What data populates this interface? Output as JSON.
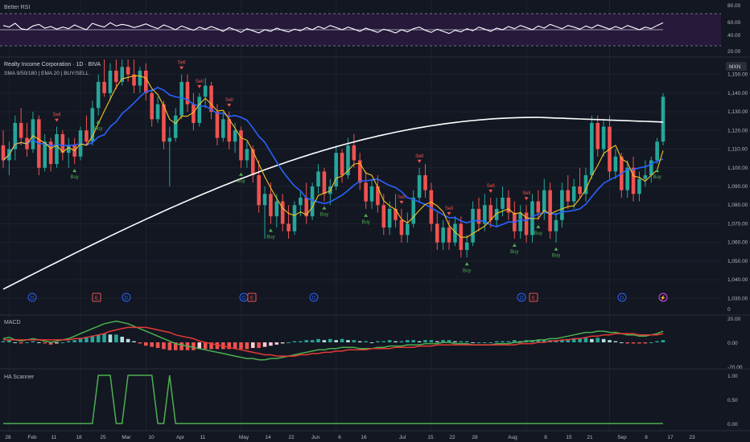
{
  "panes": {
    "rsi": {
      "label": "Better RSI",
      "axis_ticks": [
        "80.00",
        "60.00",
        "40.00",
        "20.00"
      ]
    },
    "price": {
      "title": "Realty Income Corporation · 1D · BIVA",
      "subtitle": "SMA 9/50/180 | EMA 20 | BUY/SELL",
      "currency": "MXN",
      "axis_ticks": [
        "1,150.00",
        "1,140.00",
        "1,130.00",
        "1,120.00",
        "1,110.00",
        "1,100.00",
        "1,090.00",
        "1,080.00",
        "1,070.00",
        "1,060.00",
        "1,050.00",
        "1,040.00",
        "1,030.00"
      ],
      "extra_tick": "0"
    },
    "macd": {
      "label": "MACD",
      "axis_ticks": [
        "20.00",
        "0.00",
        "-20.00"
      ]
    },
    "ha": {
      "label": "HA Scanner",
      "axis_ticks": [
        "1.00",
        "0.50",
        "0.00"
      ]
    }
  },
  "x_axis_labels": [
    "28",
    "Feb",
    "11",
    "18",
    "25",
    "Mar",
    "10",
    "Apr",
    "11",
    "May",
    "14",
    "22",
    "Jun",
    "6",
    "16",
    "Jul",
    "15",
    "22",
    "28",
    "Aug",
    "8",
    "15",
    "21",
    "Sep",
    "8",
    "17",
    "23"
  ],
  "event_markers": [
    "D",
    "E",
    "D",
    "D",
    "E",
    "D",
    "D",
    "E",
    "D",
    "⚡"
  ],
  "signal_labels": {
    "buy": "Buy",
    "sell": "Sell"
  },
  "colors": {
    "background": "#131722",
    "up": "#26a69a",
    "down": "#ef5350",
    "sma_fast": "#f7c325",
    "sma_mid": "#2962ff",
    "sma_long": "#ffffff",
    "rsi_band": "#2a1a3e",
    "macd_line": "#4caf50",
    "signal_line": "#e53935",
    "scanner": "#4caf50",
    "buy": "#4caf50",
    "sell": "#ef5350"
  },
  "chart_data": {
    "type": "candlestick",
    "price_ylim": [
      1022,
      1158
    ],
    "series": [
      {
        "name": "SMA 9",
        "color": "#f7c325"
      },
      {
        "name": "SMA 50",
        "color": "#2962ff"
      },
      {
        "name": "SMA 180",
        "color": "#ffffff"
      }
    ],
    "candles": [
      {
        "o": 1112,
        "h": 1120,
        "l": 1100,
        "c": 1104
      },
      {
        "o": 1104,
        "h": 1114,
        "l": 1096,
        "c": 1110
      },
      {
        "o": 1110,
        "h": 1128,
        "l": 1104,
        "c": 1124
      },
      {
        "o": 1124,
        "h": 1132,
        "l": 1112,
        "c": 1116
      },
      {
        "o": 1116,
        "h": 1124,
        "l": 1106,
        "c": 1110
      },
      {
        "o": 1110,
        "h": 1130,
        "l": 1108,
        "c": 1126
      },
      {
        "o": 1126,
        "h": 1128,
        "l": 1096,
        "c": 1100
      },
      {
        "o": 1100,
        "h": 1118,
        "l": 1098,
        "c": 1114
      },
      {
        "o": 1114,
        "h": 1116,
        "l": 1098,
        "c": 1102
      },
      {
        "o": 1102,
        "h": 1122,
        "l": 1100,
        "c": 1118
      },
      {
        "o": 1118,
        "h": 1120,
        "l": 1104,
        "c": 1108
      },
      {
        "o": 1108,
        "h": 1116,
        "l": 1100,
        "c": 1112
      },
      {
        "o": 1112,
        "h": 1116,
        "l": 1102,
        "c": 1106
      },
      {
        "o": 1106,
        "h": 1122,
        "l": 1104,
        "c": 1120
      },
      {
        "o": 1120,
        "h": 1128,
        "l": 1112,
        "c": 1114
      },
      {
        "o": 1114,
        "h": 1136,
        "l": 1112,
        "c": 1132
      },
      {
        "o": 1132,
        "h": 1150,
        "l": 1128,
        "c": 1146
      },
      {
        "o": 1146,
        "h": 1158,
        "l": 1138,
        "c": 1140
      },
      {
        "o": 1140,
        "h": 1156,
        "l": 1136,
        "c": 1152
      },
      {
        "o": 1152,
        "h": 1158,
        "l": 1142,
        "c": 1146
      },
      {
        "o": 1146,
        "h": 1158,
        "l": 1144,
        "c": 1154
      },
      {
        "o": 1154,
        "h": 1158,
        "l": 1146,
        "c": 1150
      },
      {
        "o": 1150,
        "h": 1158,
        "l": 1140,
        "c": 1144
      },
      {
        "o": 1144,
        "h": 1154,
        "l": 1140,
        "c": 1152
      },
      {
        "o": 1152,
        "h": 1156,
        "l": 1136,
        "c": 1140
      },
      {
        "o": 1140,
        "h": 1142,
        "l": 1122,
        "c": 1126
      },
      {
        "o": 1126,
        "h": 1138,
        "l": 1124,
        "c": 1134
      },
      {
        "o": 1134,
        "h": 1136,
        "l": 1110,
        "c": 1114
      },
      {
        "o": 1114,
        "h": 1122,
        "l": 1090,
        "c": 1116
      },
      {
        "o": 1116,
        "h": 1132,
        "l": 1114,
        "c": 1128
      },
      {
        "o": 1128,
        "h": 1150,
        "l": 1126,
        "c": 1146
      },
      {
        "o": 1146,
        "h": 1150,
        "l": 1130,
        "c": 1134
      },
      {
        "o": 1134,
        "h": 1140,
        "l": 1120,
        "c": 1124
      },
      {
        "o": 1124,
        "h": 1140,
        "l": 1122,
        "c": 1138
      },
      {
        "o": 1138,
        "h": 1148,
        "l": 1132,
        "c": 1144
      },
      {
        "o": 1144,
        "h": 1146,
        "l": 1126,
        "c": 1130
      },
      {
        "o": 1130,
        "h": 1134,
        "l": 1112,
        "c": 1116
      },
      {
        "o": 1116,
        "h": 1130,
        "l": 1114,
        "c": 1126
      },
      {
        "o": 1126,
        "h": 1130,
        "l": 1110,
        "c": 1114
      },
      {
        "o": 1114,
        "h": 1124,
        "l": 1108,
        "c": 1120
      },
      {
        "o": 1120,
        "h": 1122,
        "l": 1100,
        "c": 1104
      },
      {
        "o": 1104,
        "h": 1114,
        "l": 1100,
        "c": 1110
      },
      {
        "o": 1110,
        "h": 1112,
        "l": 1092,
        "c": 1096
      },
      {
        "o": 1096,
        "h": 1104,
        "l": 1076,
        "c": 1080
      },
      {
        "o": 1080,
        "h": 1090,
        "l": 1062,
        "c": 1086
      },
      {
        "o": 1086,
        "h": 1092,
        "l": 1070,
        "c": 1074
      },
      {
        "o": 1074,
        "h": 1086,
        "l": 1068,
        "c": 1082
      },
      {
        "o": 1082,
        "h": 1086,
        "l": 1066,
        "c": 1070
      },
      {
        "o": 1070,
        "h": 1080,
        "l": 1062,
        "c": 1066
      },
      {
        "o": 1066,
        "h": 1082,
        "l": 1064,
        "c": 1080
      },
      {
        "o": 1080,
        "h": 1088,
        "l": 1074,
        "c": 1084
      },
      {
        "o": 1084,
        "h": 1092,
        "l": 1070,
        "c": 1074
      },
      {
        "o": 1074,
        "h": 1092,
        "l": 1072,
        "c": 1090
      },
      {
        "o": 1090,
        "h": 1102,
        "l": 1086,
        "c": 1098
      },
      {
        "o": 1098,
        "h": 1100,
        "l": 1082,
        "c": 1086
      },
      {
        "o": 1086,
        "h": 1094,
        "l": 1080,
        "c": 1090
      },
      {
        "o": 1090,
        "h": 1112,
        "l": 1088,
        "c": 1108
      },
      {
        "o": 1108,
        "h": 1110,
        "l": 1092,
        "c": 1096
      },
      {
        "o": 1096,
        "h": 1116,
        "l": 1094,
        "c": 1112
      },
      {
        "o": 1112,
        "h": 1118,
        "l": 1100,
        "c": 1104
      },
      {
        "o": 1104,
        "h": 1108,
        "l": 1088,
        "c": 1092
      },
      {
        "o": 1092,
        "h": 1098,
        "l": 1078,
        "c": 1082
      },
      {
        "o": 1082,
        "h": 1094,
        "l": 1078,
        "c": 1090
      },
      {
        "o": 1090,
        "h": 1096,
        "l": 1076,
        "c": 1080
      },
      {
        "o": 1080,
        "h": 1086,
        "l": 1064,
        "c": 1068
      },
      {
        "o": 1068,
        "h": 1082,
        "l": 1064,
        "c": 1078
      },
      {
        "o": 1078,
        "h": 1086,
        "l": 1068,
        "c": 1072
      },
      {
        "o": 1072,
        "h": 1078,
        "l": 1060,
        "c": 1064
      },
      {
        "o": 1064,
        "h": 1076,
        "l": 1060,
        "c": 1070
      },
      {
        "o": 1070,
        "h": 1088,
        "l": 1068,
        "c": 1084
      },
      {
        "o": 1084,
        "h": 1100,
        "l": 1082,
        "c": 1096
      },
      {
        "o": 1096,
        "h": 1102,
        "l": 1084,
        "c": 1088
      },
      {
        "o": 1088,
        "h": 1092,
        "l": 1066,
        "c": 1070
      },
      {
        "o": 1070,
        "h": 1076,
        "l": 1056,
        "c": 1060
      },
      {
        "o": 1060,
        "h": 1072,
        "l": 1056,
        "c": 1068
      },
      {
        "o": 1068,
        "h": 1072,
        "l": 1056,
        "c": 1060
      },
      {
        "o": 1060,
        "h": 1074,
        "l": 1058,
        "c": 1070
      },
      {
        "o": 1070,
        "h": 1074,
        "l": 1052,
        "c": 1056
      },
      {
        "o": 1056,
        "h": 1064,
        "l": 1052,
        "c": 1060
      },
      {
        "o": 1060,
        "h": 1082,
        "l": 1058,
        "c": 1078
      },
      {
        "o": 1078,
        "h": 1084,
        "l": 1066,
        "c": 1070
      },
      {
        "o": 1070,
        "h": 1086,
        "l": 1066,
        "c": 1080
      },
      {
        "o": 1080,
        "h": 1084,
        "l": 1068,
        "c": 1072
      },
      {
        "o": 1072,
        "h": 1084,
        "l": 1068,
        "c": 1078
      },
      {
        "o": 1078,
        "h": 1090,
        "l": 1074,
        "c": 1084
      },
      {
        "o": 1084,
        "h": 1088,
        "l": 1072,
        "c": 1076
      },
      {
        "o": 1076,
        "h": 1082,
        "l": 1062,
        "c": 1066
      },
      {
        "o": 1066,
        "h": 1080,
        "l": 1062,
        "c": 1076
      },
      {
        "o": 1076,
        "h": 1080,
        "l": 1060,
        "c": 1064
      },
      {
        "o": 1064,
        "h": 1086,
        "l": 1060,
        "c": 1082
      },
      {
        "o": 1082,
        "h": 1088,
        "l": 1072,
        "c": 1076
      },
      {
        "o": 1076,
        "h": 1094,
        "l": 1072,
        "c": 1088
      },
      {
        "o": 1088,
        "h": 1092,
        "l": 1062,
        "c": 1066
      },
      {
        "o": 1066,
        "h": 1076,
        "l": 1060,
        "c": 1072
      },
      {
        "o": 1072,
        "h": 1092,
        "l": 1068,
        "c": 1088
      },
      {
        "o": 1088,
        "h": 1096,
        "l": 1078,
        "c": 1082
      },
      {
        "o": 1082,
        "h": 1094,
        "l": 1078,
        "c": 1090
      },
      {
        "o": 1090,
        "h": 1100,
        "l": 1084,
        "c": 1086
      },
      {
        "o": 1086,
        "h": 1100,
        "l": 1082,
        "c": 1096
      },
      {
        "o": 1096,
        "h": 1128,
        "l": 1094,
        "c": 1124
      },
      {
        "o": 1124,
        "h": 1128,
        "l": 1106,
        "c": 1110
      },
      {
        "o": 1110,
        "h": 1126,
        "l": 1106,
        "c": 1122
      },
      {
        "o": 1122,
        "h": 1128,
        "l": 1094,
        "c": 1098
      },
      {
        "o": 1098,
        "h": 1110,
        "l": 1094,
        "c": 1106
      },
      {
        "o": 1106,
        "h": 1108,
        "l": 1084,
        "c": 1088
      },
      {
        "o": 1088,
        "h": 1104,
        "l": 1084,
        "c": 1100
      },
      {
        "o": 1100,
        "h": 1106,
        "l": 1082,
        "c": 1086
      },
      {
        "o": 1086,
        "h": 1098,
        "l": 1082,
        "c": 1094
      },
      {
        "o": 1094,
        "h": 1104,
        "l": 1090,
        "c": 1096
      },
      {
        "o": 1096,
        "h": 1106,
        "l": 1092,
        "c": 1104
      },
      {
        "o": 1104,
        "h": 1116,
        "l": 1102,
        "c": 1114
      },
      {
        "o": 1114,
        "h": 1140,
        "l": 1112,
        "c": 1138
      }
    ],
    "rsi": [
      58,
      55,
      62,
      52,
      50,
      57,
      60,
      53,
      56,
      51,
      55,
      52,
      59,
      54,
      50,
      62,
      58,
      55,
      63,
      57,
      60,
      58,
      54,
      57,
      61,
      56,
      52,
      59,
      55,
      50,
      57,
      53,
      49,
      55,
      51,
      56,
      52,
      47,
      54,
      50,
      45,
      52,
      48,
      44,
      50,
      47,
      53,
      49,
      46,
      51,
      48,
      54,
      50,
      56,
      52,
      58,
      54,
      50,
      55,
      51,
      47,
      53,
      49,
      45,
      51,
      48,
      44,
      50,
      46,
      52,
      55,
      49,
      45,
      51,
      47,
      43,
      49,
      46,
      52,
      48,
      55,
      51,
      47,
      53,
      50,
      56,
      52,
      58,
      54,
      50,
      57,
      53,
      60,
      56,
      52,
      58,
      55,
      51,
      57,
      53,
      59,
      55,
      51,
      56,
      52,
      58,
      54,
      50,
      55,
      52,
      58,
      63
    ],
    "macd": [
      3,
      4,
      2,
      1,
      2,
      3,
      2,
      1,
      0,
      1,
      2,
      3,
      5,
      7,
      9,
      11,
      13,
      15,
      16,
      17,
      16,
      15,
      13,
      11,
      9,
      7,
      5,
      3,
      1,
      -1,
      -2,
      -3,
      -4,
      -5,
      -6,
      -7,
      -8,
      -9,
      -10,
      -11,
      -12,
      -13,
      -13,
      -14,
      -14,
      -13,
      -13,
      -12,
      -11,
      -10,
      -9,
      -8,
      -7,
      -6,
      -6,
      -5,
      -5,
      -4,
      -4,
      -4,
      -5,
      -5,
      -5,
      -4,
      -4,
      -3,
      -3,
      -3,
      -2,
      -2,
      -2,
      -1,
      -1,
      -1,
      0,
      0,
      -1,
      -1,
      -1,
      -2,
      -2,
      -2,
      -2,
      -1,
      -1,
      -1,
      0,
      0,
      1,
      1,
      2,
      2,
      3,
      3,
      4,
      5,
      6,
      7,
      8,
      8,
      9,
      9,
      8,
      8,
      7,
      6,
      6,
      5,
      5,
      6,
      7,
      9
    ],
    "signal": [
      2,
      2,
      2,
      2,
      2,
      2,
      2,
      2,
      2,
      2,
      2,
      2,
      3,
      3,
      4,
      5,
      6,
      7,
      9,
      10,
      11,
      12,
      12,
      12,
      12,
      11,
      10,
      9,
      8,
      6,
      5,
      4,
      3,
      1,
      0,
      -1,
      -2,
      -3,
      -4,
      -5,
      -6,
      -7,
      -8,
      -9,
      -10,
      -10,
      -11,
      -11,
      -11,
      -11,
      -10,
      -10,
      -9,
      -9,
      -8,
      -8,
      -7,
      -7,
      -6,
      -6,
      -6,
      -6,
      -5,
      -5,
      -5,
      -5,
      -4,
      -4,
      -4,
      -4,
      -3,
      -3,
      -3,
      -2,
      -2,
      -2,
      -2,
      -2,
      -2,
      -2,
      -2,
      -2,
      -2,
      -2,
      -2,
      -2,
      -2,
      -1,
      -1,
      -1,
      0,
      0,
      1,
      1,
      2,
      2,
      3,
      3,
      4,
      5,
      5,
      6,
      6,
      7,
      7,
      7,
      7,
      6,
      6,
      6,
      6,
      7
    ],
    "ha_scanner": [
      0,
      0,
      0,
      0,
      0,
      0,
      0,
      0,
      0,
      0,
      0,
      0,
      0,
      0,
      0,
      0,
      1,
      1,
      1,
      0,
      0,
      1,
      1,
      1,
      1,
      1,
      0,
      0,
      1,
      0,
      0,
      0,
      0,
      0,
      0,
      0,
      0,
      0,
      0,
      0,
      0,
      0,
      0,
      0,
      0,
      0,
      0,
      0,
      0,
      0,
      0,
      0,
      0,
      0,
      0,
      0,
      0,
      0,
      0,
      0,
      0,
      0,
      0,
      0,
      0,
      0,
      0,
      0,
      0,
      0,
      0,
      0,
      0,
      0,
      0,
      0,
      0,
      0,
      0,
      0,
      0,
      0,
      0,
      0,
      0,
      0,
      0,
      0,
      0,
      0,
      0,
      0,
      0,
      0,
      0,
      0,
      0,
      0,
      0,
      0,
      0,
      0,
      0,
      0,
      0,
      0,
      0,
      0,
      0,
      0,
      0,
      0
    ],
    "signals": [
      {
        "i": 9,
        "type": "sell"
      },
      {
        "i": 12,
        "type": "buy"
      },
      {
        "i": 16,
        "type": "buy"
      },
      {
        "i": 30,
        "type": "sell"
      },
      {
        "i": 33,
        "type": "sell"
      },
      {
        "i": 38,
        "type": "sell"
      },
      {
        "i": 40,
        "type": "buy"
      },
      {
        "i": 45,
        "type": "buy"
      },
      {
        "i": 54,
        "type": "buy"
      },
      {
        "i": 61,
        "type": "buy"
      },
      {
        "i": 67,
        "type": "sell"
      },
      {
        "i": 70,
        "type": "sell"
      },
      {
        "i": 75,
        "type": "sell"
      },
      {
        "i": 78,
        "type": "buy"
      },
      {
        "i": 82,
        "type": "sell"
      },
      {
        "i": 86,
        "type": "buy"
      },
      {
        "i": 88,
        "type": "sell"
      },
      {
        "i": 90,
        "type": "buy"
      },
      {
        "i": 93,
        "type": "buy"
      },
      {
        "i": 110,
        "type": "buy"
      }
    ]
  }
}
